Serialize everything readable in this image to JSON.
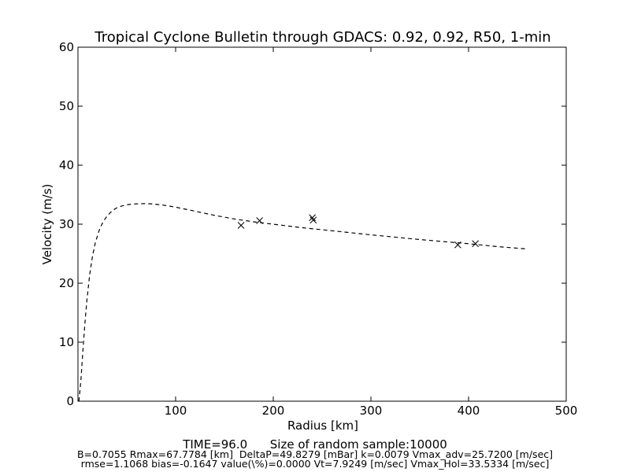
{
  "chart_data": {
    "type": "line",
    "title": "Tropical Cyclone Bulletin through GDACS: 0.92, 0.92, R50, 1-min",
    "xlabel": "Radius [km]",
    "ylabel": "Velocity (m/s)",
    "xlim": [
      0,
      500
    ],
    "ylim": [
      0,
      60
    ],
    "x_ticks": [
      100,
      200,
      300,
      400,
      500
    ],
    "y_ticks": [
      0,
      10,
      20,
      30,
      40,
      50,
      60
    ],
    "grid": false,
    "series": [
      {
        "style": "dashed-line",
        "color": "#000000",
        "x": [
          1,
          3,
          5,
          7,
          9,
          12,
          15,
          18,
          22,
          26,
          30,
          35,
          40,
          45,
          50,
          55,
          60,
          67.8,
          75,
          85,
          100,
          120,
          140,
          160,
          180,
          200,
          230,
          260,
          300,
          350,
          400,
          430,
          460
        ],
        "y": [
          0,
          3.5,
          8.4,
          13.0,
          16.9,
          21.5,
          24.7,
          27.0,
          29.1,
          30.5,
          31.4,
          32.3,
          32.8,
          33.1,
          33.3,
          33.4,
          33.45,
          33.5,
          33.45,
          33.3,
          32.9,
          32.2,
          31.5,
          30.9,
          30.4,
          30.0,
          29.4,
          28.9,
          28.2,
          27.4,
          26.7,
          26.2,
          25.8
        ]
      },
      {
        "style": "markers-x",
        "color": "#000000",
        "x": [
          167,
          186,
          240,
          241,
          389,
          407
        ],
        "y": [
          29.8,
          30.6,
          31.1,
          30.7,
          26.5,
          26.7
        ]
      }
    ]
  },
  "footer": {
    "line1": "TIME=96.0      Size of random sample:10000",
    "line2": "B=0.7055 Rmax=67.7784 [km]  DeltaP=49.8279 [mBar] k=0.0079 Vmax_adv=25.7200 [m/sec]",
    "line3": "rmse=1.1068 bias=-0.1647 value(\\%)=0.0000 Vt=7.9249 [m/sec] Vmax_Hol=33.5334 [m/sec]"
  }
}
